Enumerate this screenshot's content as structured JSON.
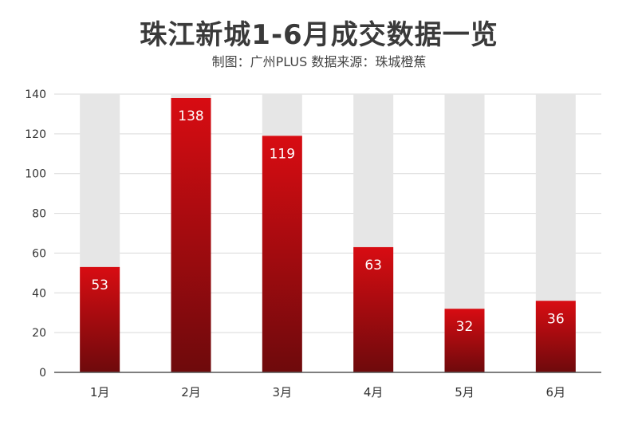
{
  "chart_data": {
    "type": "bar",
    "title": "珠江新城1-6月成交数据一览",
    "subtitle": "制图：广州PLUS  数据来源：珠城橙蕉",
    "categories": [
      "1月",
      "2月",
      "3月",
      "4月",
      "5月",
      "6月"
    ],
    "values": [
      53,
      138,
      119,
      63,
      32,
      36
    ],
    "data_labels": [
      "53",
      "138",
      "119",
      "63",
      "32",
      "36"
    ],
    "ylim": [
      0,
      140
    ],
    "yticks": [
      0,
      20,
      40,
      60,
      80,
      100,
      120,
      140
    ],
    "ytick_labels": [
      "0",
      "20",
      "40",
      "60",
      "80",
      "100",
      "120",
      "140"
    ],
    "grid": true,
    "legend": "none",
    "colors": {
      "bar_top": "#d80c12",
      "bar_bottom": "#6e0a0c",
      "bar_background": "#e6e6e6",
      "grid": "#d9d9d9",
      "axis": "#555555",
      "label_on_bar": "#ffffff"
    }
  }
}
